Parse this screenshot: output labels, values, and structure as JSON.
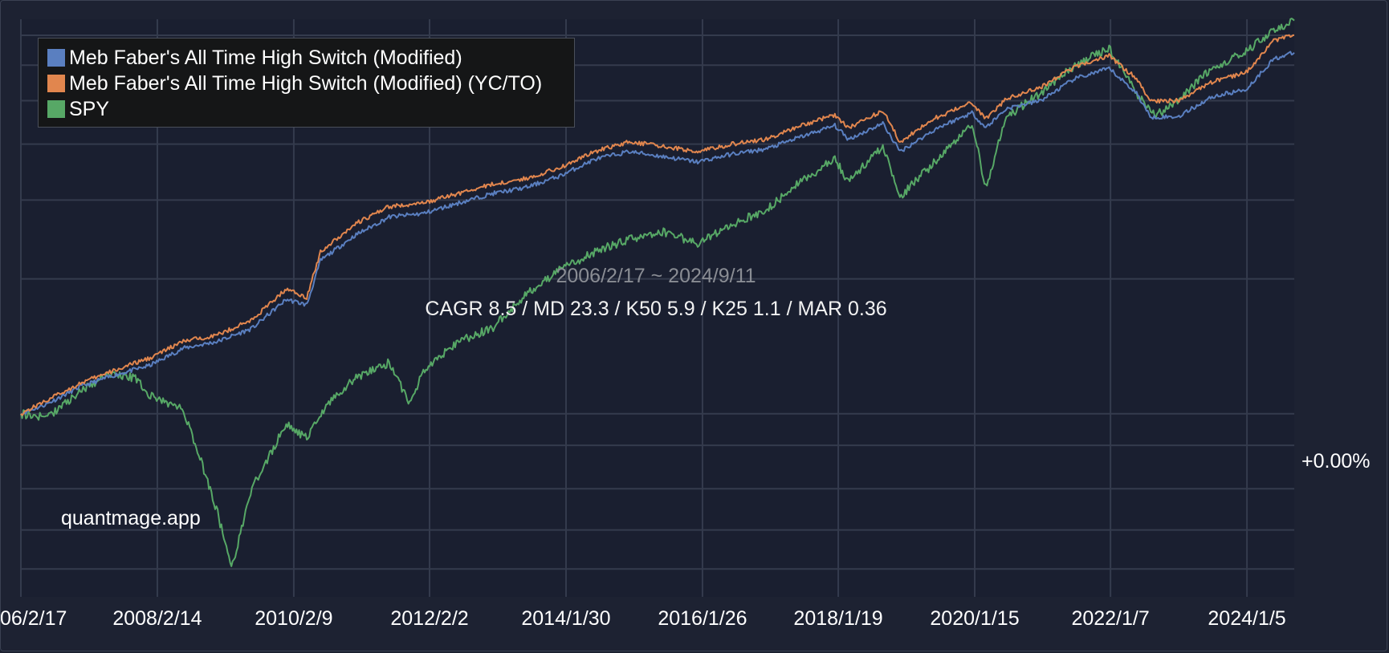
{
  "chart_data": {
    "type": "line",
    "y_scale": "log",
    "grid": true,
    "legend_position": "top-left",
    "range_label": "2006/2/17 ~ 2024/9/11",
    "stats_label": "CAGR 8.5 / MD 23.3 / K50 5.9 / K25 1.1 / MAR 0.36",
    "watermark": "quantmage.app",
    "y_tick_label": "+0.00%",
    "x_tick_labels": [
      "06/2/17",
      "2008/2/14",
      "2010/2/9",
      "2012/2/2",
      "2014/1/30",
      "2016/1/26",
      "2018/1/19",
      "2020/1/15",
      "2022/1/7",
      "2024/1/5"
    ],
    "x_tick_years": [
      2006.13,
      2008.12,
      2010.11,
      2012.09,
      2014.08,
      2016.07,
      2018.05,
      2020.04,
      2022.02,
      2024.01
    ],
    "x_range": [
      2006.13,
      2024.7
    ],
    "y_range_growth": [
      0.39,
      7.6
    ],
    "series": [
      {
        "name": "Meb Faber's All Time High Switch (Modified)",
        "color": "#5a7fc0",
        "points": [
          [
            2006.13,
            1.0
          ],
          [
            2006.5,
            1.05
          ],
          [
            2007.0,
            1.15
          ],
          [
            2007.5,
            1.22
          ],
          [
            2008.0,
            1.28
          ],
          [
            2008.5,
            1.4
          ],
          [
            2009.0,
            1.45
          ],
          [
            2009.5,
            1.55
          ],
          [
            2010.0,
            1.8
          ],
          [
            2010.3,
            1.75
          ],
          [
            2010.5,
            2.2
          ],
          [
            2011.0,
            2.5
          ],
          [
            2011.5,
            2.75
          ],
          [
            2012.0,
            2.8
          ],
          [
            2012.5,
            2.95
          ],
          [
            2013.0,
            3.1
          ],
          [
            2013.5,
            3.2
          ],
          [
            2014.0,
            3.4
          ],
          [
            2014.5,
            3.7
          ],
          [
            2015.0,
            3.85
          ],
          [
            2015.5,
            3.75
          ],
          [
            2016.0,
            3.65
          ],
          [
            2016.5,
            3.8
          ],
          [
            2017.0,
            3.9
          ],
          [
            2017.5,
            4.15
          ],
          [
            2018.0,
            4.4
          ],
          [
            2018.2,
            4.1
          ],
          [
            2018.7,
            4.45
          ],
          [
            2018.95,
            3.85
          ],
          [
            2019.5,
            4.35
          ],
          [
            2020.0,
            4.7
          ],
          [
            2020.2,
            4.35
          ],
          [
            2020.5,
            4.8
          ],
          [
            2021.0,
            5.0
          ],
          [
            2021.5,
            5.6
          ],
          [
            2022.0,
            5.9
          ],
          [
            2022.4,
            5.2
          ],
          [
            2022.6,
            4.6
          ],
          [
            2023.0,
            4.6
          ],
          [
            2023.5,
            5.1
          ],
          [
            2024.0,
            5.3
          ],
          [
            2024.4,
            6.2
          ],
          [
            2024.7,
            6.4
          ]
        ]
      },
      {
        "name": "Meb Faber's All Time High Switch (Modified) (YC/TO)",
        "color": "#e1864e",
        "points": [
          [
            2006.13,
            1.0
          ],
          [
            2006.5,
            1.07
          ],
          [
            2007.0,
            1.17
          ],
          [
            2007.5,
            1.25
          ],
          [
            2008.0,
            1.33
          ],
          [
            2008.5,
            1.45
          ],
          [
            2009.0,
            1.5
          ],
          [
            2009.5,
            1.62
          ],
          [
            2010.0,
            1.9
          ],
          [
            2010.3,
            1.82
          ],
          [
            2010.5,
            2.3
          ],
          [
            2011.0,
            2.65
          ],
          [
            2011.5,
            2.9
          ],
          [
            2012.0,
            2.95
          ],
          [
            2012.5,
            3.1
          ],
          [
            2013.0,
            3.25
          ],
          [
            2013.5,
            3.35
          ],
          [
            2014.0,
            3.55
          ],
          [
            2014.5,
            3.85
          ],
          [
            2015.0,
            4.05
          ],
          [
            2015.5,
            3.95
          ],
          [
            2016.0,
            3.85
          ],
          [
            2016.5,
            4.0
          ],
          [
            2017.0,
            4.1
          ],
          [
            2017.5,
            4.4
          ],
          [
            2018.0,
            4.65
          ],
          [
            2018.2,
            4.35
          ],
          [
            2018.7,
            4.75
          ],
          [
            2018.95,
            4.05
          ],
          [
            2019.5,
            4.6
          ],
          [
            2020.0,
            4.95
          ],
          [
            2020.2,
            4.55
          ],
          [
            2020.5,
            5.05
          ],
          [
            2021.0,
            5.35
          ],
          [
            2021.5,
            5.95
          ],
          [
            2022.0,
            6.3
          ],
          [
            2022.4,
            5.6
          ],
          [
            2022.6,
            5.0
          ],
          [
            2023.0,
            5.0
          ],
          [
            2023.5,
            5.5
          ],
          [
            2024.0,
            5.8
          ],
          [
            2024.4,
            6.8
          ],
          [
            2024.7,
            7.0
          ]
        ]
      },
      {
        "name": "SPY",
        "color": "#57a866",
        "points": [
          [
            2006.13,
            1.0
          ],
          [
            2006.5,
            0.98
          ],
          [
            2007.0,
            1.12
          ],
          [
            2007.4,
            1.23
          ],
          [
            2007.8,
            1.2
          ],
          [
            2008.0,
            1.1
          ],
          [
            2008.5,
            1.02
          ],
          [
            2008.8,
            0.75
          ],
          [
            2009.0,
            0.6
          ],
          [
            2009.2,
            0.45
          ],
          [
            2009.5,
            0.68
          ],
          [
            2010.0,
            0.95
          ],
          [
            2010.3,
            0.88
          ],
          [
            2010.6,
            1.05
          ],
          [
            2011.0,
            1.2
          ],
          [
            2011.5,
            1.3
          ],
          [
            2011.8,
            1.05
          ],
          [
            2012.0,
            1.25
          ],
          [
            2012.5,
            1.45
          ],
          [
            2013.0,
            1.55
          ],
          [
            2013.5,
            1.85
          ],
          [
            2014.0,
            2.1
          ],
          [
            2014.5,
            2.3
          ],
          [
            2015.0,
            2.45
          ],
          [
            2015.5,
            2.55
          ],
          [
            2016.0,
            2.4
          ],
          [
            2016.5,
            2.65
          ],
          [
            2017.0,
            2.85
          ],
          [
            2017.5,
            3.3
          ],
          [
            2018.0,
            3.7
          ],
          [
            2018.2,
            3.3
          ],
          [
            2018.7,
            3.95
          ],
          [
            2018.95,
            3.05
          ],
          [
            2019.5,
            3.7
          ],
          [
            2020.0,
            4.45
          ],
          [
            2020.2,
            3.2
          ],
          [
            2020.5,
            4.6
          ],
          [
            2021.0,
            5.2
          ],
          [
            2021.5,
            6.0
          ],
          [
            2022.0,
            6.55
          ],
          [
            2022.4,
            5.2
          ],
          [
            2022.7,
            4.65
          ],
          [
            2023.0,
            5.0
          ],
          [
            2023.5,
            5.9
          ],
          [
            2024.0,
            6.45
          ],
          [
            2024.4,
            7.2
          ],
          [
            2024.7,
            7.55
          ]
        ]
      }
    ]
  }
}
